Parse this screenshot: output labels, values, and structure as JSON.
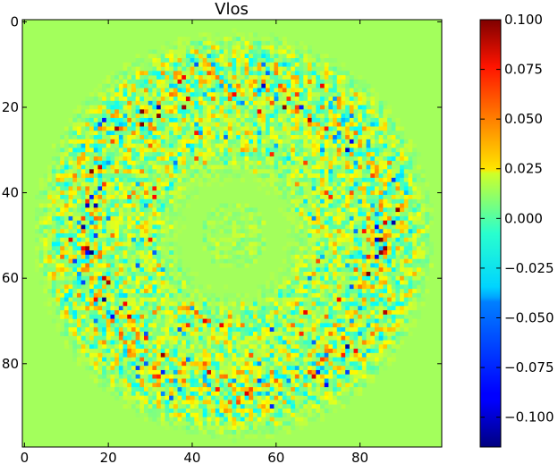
{
  "chart_data": {
    "type": "heatmap",
    "title": "Vlos",
    "xlabel": "",
    "ylabel": "",
    "grid": false,
    "colormap": "jet",
    "grid_shape": [
      100,
      100
    ],
    "xlim": [
      0,
      99
    ],
    "ylim": [
      99,
      0
    ],
    "background_value": 0.0,
    "pattern": "radially symmetric oscillating ring pattern centered near (50, 50), values concentrated between radius ~15 and ~47",
    "x_ticks": [
      "0",
      "20",
      "40",
      "60",
      "80"
    ],
    "y_ticks": [
      "0",
      "20",
      "40",
      "60",
      "80"
    ],
    "colorbar": {
      "vmin": -0.115,
      "vmax": 0.1,
      "ticks": [
        "0.100",
        "0.075",
        "0.050",
        "0.025",
        "0.000",
        "−0.025",
        "−0.050",
        "−0.075",
        "−0.100"
      ]
    }
  }
}
